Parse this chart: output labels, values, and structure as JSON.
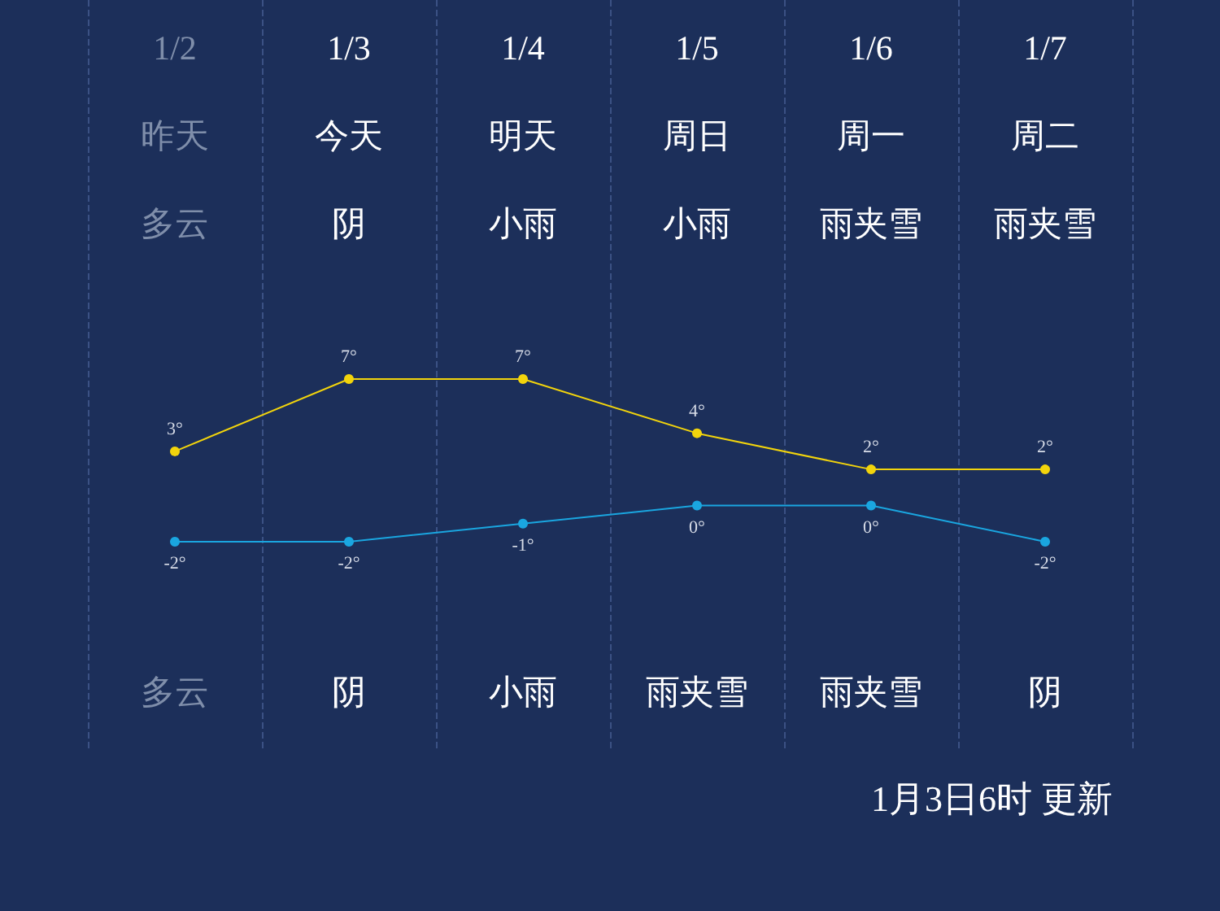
{
  "chart_data": {
    "type": "line",
    "categories": [
      "1/2",
      "1/3",
      "1/4",
      "1/5",
      "1/6",
      "1/7"
    ],
    "series": [
      {
        "color": "#f2d40c",
        "values": [
          3,
          7,
          7,
          4,
          2,
          2
        ],
        "value_labels": [
          "3°",
          "7°",
          "7°",
          "4°",
          "2°",
          "2°"
        ]
      },
      {
        "color": "#1aa6e0",
        "values": [
          -2,
          -2,
          -1,
          0,
          0,
          -2
        ],
        "value_labels": [
          "-2°",
          "-2°",
          "-1°",
          "0°",
          "0°",
          "-2°"
        ]
      }
    ],
    "annotations": [
      "昨天",
      "今天",
      "明天",
      "周日",
      "周一",
      "周二",
      "多云",
      "阴",
      "小雨",
      "小雨",
      "雨夹雪",
      "雨夹雪",
      "多云",
      "阴",
      "小雨",
      "雨夹雪",
      "雨夹雪",
      "阴",
      "1月3日6时 更新"
    ],
    "grid": "x",
    "marker": "circle",
    "line_style": "solid"
  }
}
